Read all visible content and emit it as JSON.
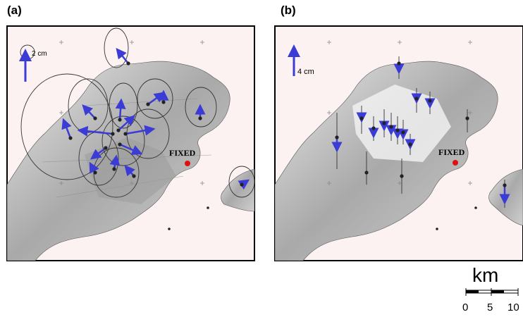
{
  "panels": [
    {
      "label": "(a)",
      "scale_label": "2 cm",
      "fixed_label": "FIXED"
    },
    {
      "label": "(b)",
      "scale_label": "4 cm",
      "fixed_label": "FIXED"
    }
  ],
  "scale_bar": {
    "unit": "km",
    "ticks": [
      "0",
      "5",
      "10"
    ]
  },
  "colors": {
    "vector": "#3b3bd6",
    "fixed_station": "#e01010",
    "frame_bg": "#fdf2f2",
    "land": "#b5b5b5"
  }
}
